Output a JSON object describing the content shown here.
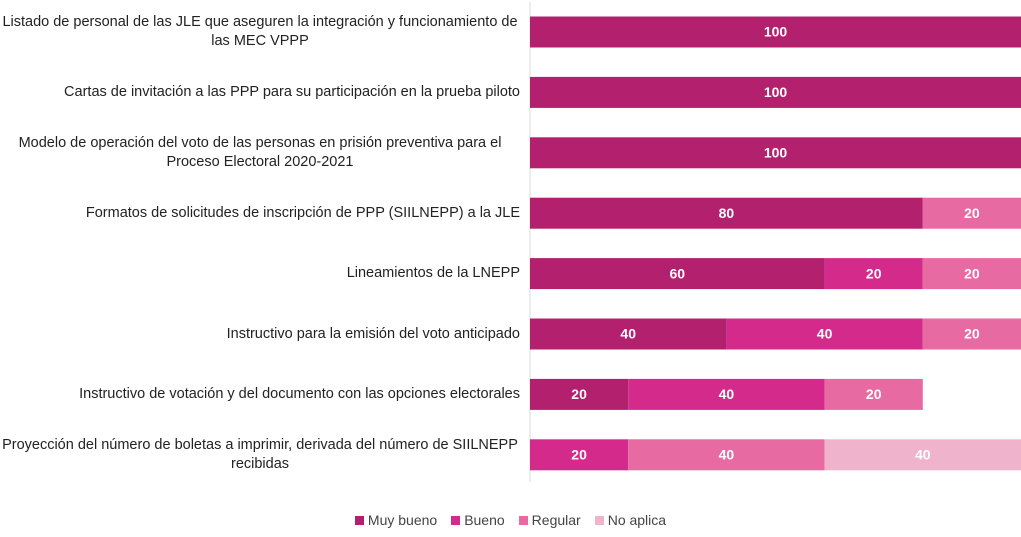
{
  "chart_data": {
    "type": "stacked-barh",
    "categories": [
      "Listado de personal de las JLE que aseguren la integración y funcionamiento de las MEC VPPP",
      "Cartas de invitación a las PPP para su participación en la prueba piloto",
      "Modelo de operación del voto de las personas en prisión preventiva para el Proceso Electoral 2020-2021",
      "Formatos de solicitudes de inscripción de PPP (SIILNEPP) a la JLE",
      "Lineamientos de la LNEPP",
      "Instructivo para la emisión del voto anticipado",
      "Instructivo de votación y del documento con las opciones electorales",
      "Proyección del número de boletas a imprimir, derivada del número de SIILNEPP recibidas"
    ],
    "series": [
      {
        "name": "Muy bueno",
        "color": "#b3206e",
        "values": [
          100,
          100,
          100,
          80,
          60,
          40,
          20,
          null
        ]
      },
      {
        "name": "Bueno",
        "color": "#d42a8c",
        "values": [
          null,
          null,
          null,
          null,
          20,
          40,
          40,
          20
        ]
      },
      {
        "name": "Regular",
        "color": "#e86aa3",
        "values": [
          null,
          null,
          null,
          20,
          20,
          20,
          20,
          40
        ]
      },
      {
        "name": "No aplica",
        "color": "#f0b3cc",
        "values": [
          null,
          null,
          null,
          null,
          null,
          null,
          null,
          40
        ]
      }
    ],
    "xlim": [
      0,
      100
    ],
    "legend": "bottom"
  }
}
